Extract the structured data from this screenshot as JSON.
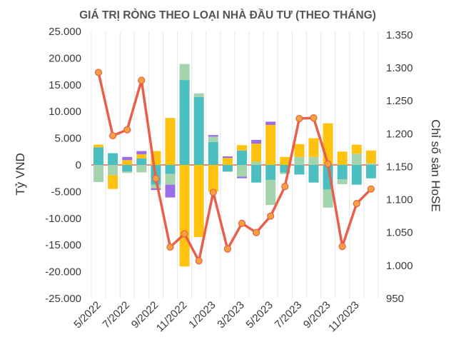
{
  "chart_data": {
    "type": "bar",
    "title": "GIÁ TRỊ RÒNG THEO LOẠI NHÀ ĐẦU TƯ (THEO THÁNG)",
    "ylabel": "Tỷ VND",
    "y2label": "Chỉ số sàn HoSE",
    "ylim": [
      -25000,
      25000
    ],
    "y2lim": [
      950,
      1350
    ],
    "yticks": [
      "25.000",
      "20.000",
      "15.000",
      "10.000",
      "5.000",
      "0",
      "-5.000",
      "-10.000",
      "-15.000",
      "-20.000",
      "-25.000"
    ],
    "y2ticks": [
      "1.350",
      "1.300",
      "1.250",
      "1.200",
      "1.150",
      "1.100",
      "1.050",
      "1.000",
      "950"
    ],
    "categories": [
      "5/2022",
      "6/2022",
      "7/2022",
      "8/2022",
      "9/2022",
      "10/2022",
      "11/2022",
      "12/2022",
      "1/2023",
      "2/2023",
      "3/2023",
      "4/2023",
      "5/2023",
      "6/2023",
      "7/2023",
      "8/2023",
      "9/2023",
      "10/2023",
      "11/2023",
      "12/2023"
    ],
    "xtick_labels": [
      "5/2022",
      "7/2022",
      "9/2022",
      "11/2022",
      "1/2023",
      "3/2023",
      "5/2023",
      "7/2023",
      "9/2023",
      "11/2023"
    ],
    "series": [
      {
        "name": "Teal",
        "color": "#4bbfbf",
        "values": [
          3300,
          2200,
          -1200,
          1200,
          -3700,
          -1700,
          15900,
          12700,
          4300,
          -1200,
          2700,
          -3300,
          -2800,
          -1400,
          -1800,
          -3300,
          -4600,
          -2700,
          -3700,
          -2500
        ]
      },
      {
        "name": "Light green",
        "color": "#a3d4ad",
        "values": [
          -3200,
          -1900,
          -300,
          -1400,
          -700,
          -2000,
          3000,
          700,
          1000,
          -100,
          -2200,
          600,
          -4700,
          -300,
          1500,
          1500,
          -3400,
          -900,
          2100,
          300
        ]
      },
      {
        "name": "Yellow",
        "color": "#ffc20e",
        "values": [
          500,
          -2600,
          900,
          800,
          2600,
          8800,
          -19000,
          -13500,
          -5000,
          1300,
          1000,
          3400,
          7500,
          1500,
          2400,
          3500,
          7800,
          2500,
          1700,
          2400
        ]
      },
      {
        "name": "Purple",
        "color": "#9b6ee8",
        "values": [
          0,
          0,
          600,
          600,
          -300,
          -2400,
          0,
          0,
          300,
          300,
          -300,
          700,
          600,
          0,
          0,
          0,
          0,
          0,
          0,
          0
        ]
      }
    ],
    "line": {
      "name": "HoSE index",
      "color": "#e8604c",
      "values": [
        1293,
        1197,
        1206,
        1281,
        1132,
        1028,
        1048,
        1007,
        1111,
        1025,
        1064,
        1050,
        1075,
        1120,
        1223,
        1224,
        1154,
        1029,
        1094,
        1116
      ]
    }
  }
}
